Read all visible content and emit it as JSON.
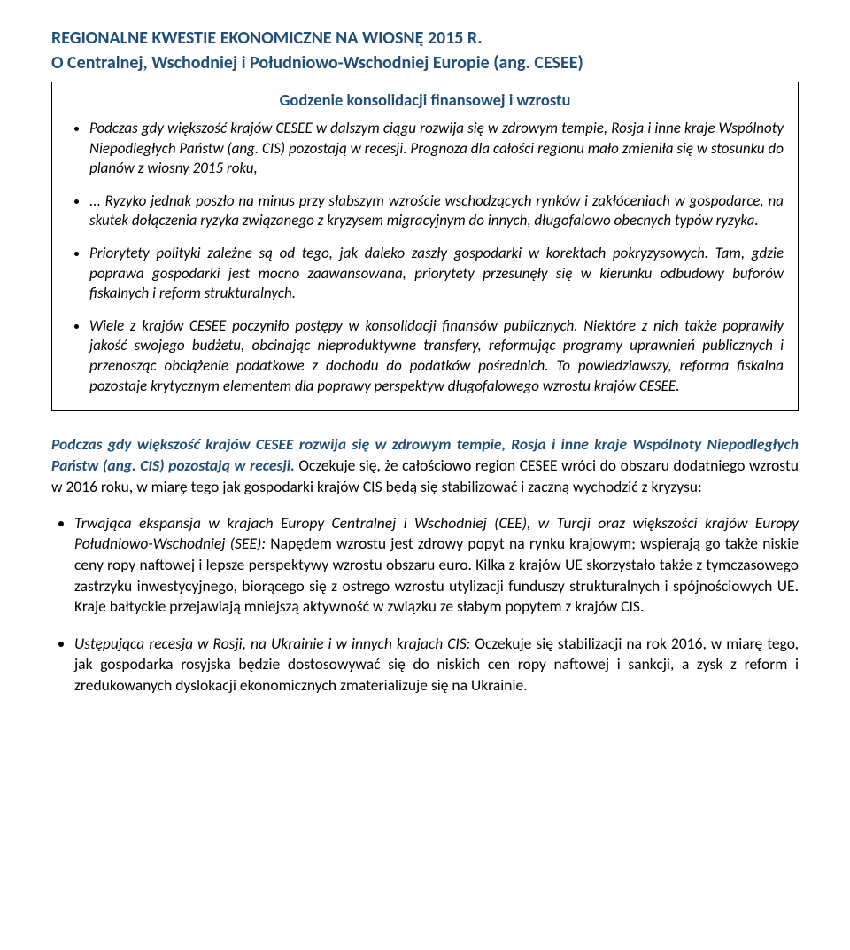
{
  "title": {
    "line1": "REGIONALNE KWESTIE EKONOMICZNE NA WIOSNĘ 2015 R.",
    "line2": "O Centralnej, Wschodniej i Południowo-Wschodniej Europie (ang. CESEE)"
  },
  "box": {
    "heading": "Godzenie konsolidacji finansowej i wzrostu",
    "bullets": [
      "Podczas gdy większość krajów CESEE w dalszym ciągu rozwija się w zdrowym tempie, Rosja i inne kraje Wspólnoty Niepodległych Państw (ang. CIS) pozostają w recesji. Prognoza dla całości regionu mało zmieniła się w stosunku do planów z wiosny 2015 roku,",
      "... Ryzyko jednak poszło na minus przy słabszym wzroście wschodzących rynków i zakłóceniach w gospodarce, na skutek dołączenia ryzyka związanego z kryzysem migracyjnym do innych, długofalowo obecnych typów ryzyka.",
      "Priorytety polityki zależne są od tego, jak daleko zaszły gospodarki w korektach pokryzysowych. Tam, gdzie poprawa gospodarki jest mocno zaawansowana, priorytety przesunęły się w kierunku odbudowy buforów fiskalnych i reform strukturalnych.",
      "Wiele z krajów CESEE poczyniło postępy w konsolidacji finansów publicznych. Niektóre z nich także poprawiły jakość swojego budżetu, obcinając nieproduktywne transfery, reformując programy uprawnień publicznych i przenosząc obciążenie podatkowe z dochodu do podatków pośrednich. To powiedziawszy, reforma fiskalna pozostaje krytycznym elementem dla poprawy perspektyw długofalowego wzrostu krajów CESEE."
    ]
  },
  "lead": {
    "emph": "Podczas gdy większość krajów CESEE rozwija się w zdrowym tempie, Rosja i inne kraje Wspólnoty Niepodległych Państw (ang. CIS) pozostają w recesji.",
    "rest": " Oczekuje się, że całościowo region CESEE wróci do obszaru dodatniego wzrostu w 2016 roku, w miarę tego jak gospodarki krajów CIS będą się stabilizować i zaczną wychodzić z kryzysu:"
  },
  "mainBullets": [
    {
      "lead": "Trwająca ekspansja w krajach Europy Centralnej i Wschodniej (CEE), w Turcji oraz większości krajów Europy Południowo-Wschodniej (SEE):",
      "rest": "  Napędem wzrostu jest zdrowy popyt na rynku krajowym; wspierają go także niskie ceny ropy naftowej i lepsze perspektywy wzrostu obszaru euro.  Kilka z krajów UE skorzystało także z tymczasowego zastrzyku inwestycyjnego, biorącego się z ostrego wzrostu utylizacji funduszy strukturalnych i spójnościowych UE. Kraje bałtyckie przejawiają mniejszą aktywność w związku ze słabym popytem z krajów CIS."
    },
    {
      "lead": "Ustępująca recesja w Rosji, na Ukrainie i w innych krajach CIS:",
      "rest": " Oczekuje się stabilizacji na rok 2016, w miarę tego, jak gospodarka rosyjska będzie dostosowywać się do niskich cen ropy naftowej i sankcji, a zysk z reform i zredukowanych dyslokacji ekonomicznych zmaterializuje się na Ukrainie."
    }
  ],
  "colors": {
    "heading": "#1f4e79",
    "text": "#000000",
    "background": "#ffffff",
    "boxBorder": "#000000"
  }
}
